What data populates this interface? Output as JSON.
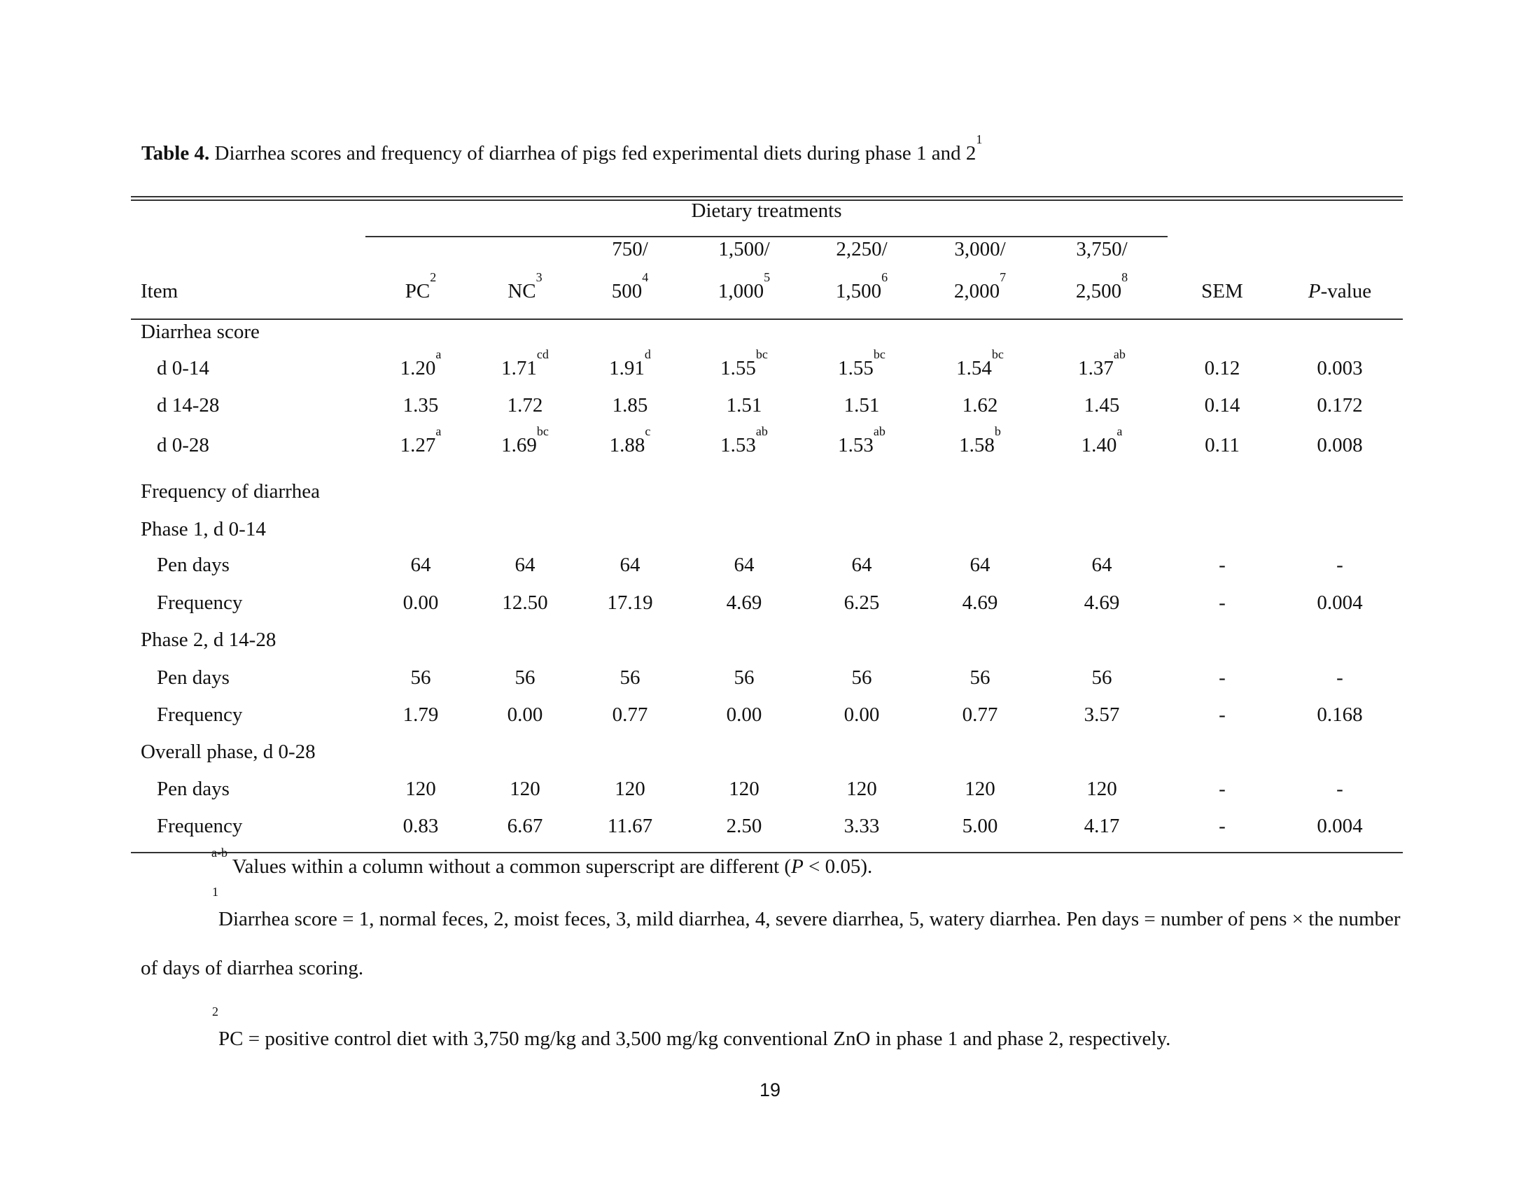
{
  "title": {
    "label": "Table 4.",
    "text": " Diarrhea scores and frequency of diarrhea of pigs fed experimental diets during phase 1 and 2",
    "sup": "1"
  },
  "header": {
    "group": "Dietary treatments",
    "item": "Item",
    "columns": [
      {
        "l1": "",
        "l2": "PC",
        "sup": "2"
      },
      {
        "l1": "",
        "l2": "NC",
        "sup": "3"
      },
      {
        "l1": "750/",
        "l2": "500",
        "sup": "4"
      },
      {
        "l1": "1,500/",
        "l2": "1,000",
        "sup": "5"
      },
      {
        "l1": "2,250/",
        "l2": "1,500",
        "sup": "6"
      },
      {
        "l1": "3,000/",
        "l2": "2,000",
        "sup": "7"
      },
      {
        "l1": "3,750/",
        "l2": "2,500",
        "sup": "8"
      },
      {
        "l1": "",
        "l2": "SEM",
        "sup": ""
      },
      {
        "l1": "",
        "l2": "P",
        "sup": "",
        "suffix": "-value"
      }
    ]
  },
  "rows": [
    {
      "label": "Diarrhea score",
      "indent": false,
      "cells": []
    },
    {
      "label": "d 0-14",
      "indent": true,
      "cells": [
        [
          "1.20",
          "a"
        ],
        [
          "1.71",
          "cd"
        ],
        [
          "1.91",
          "d"
        ],
        [
          "1.55",
          "bc"
        ],
        [
          "1.55",
          "bc"
        ],
        [
          "1.54",
          "bc"
        ],
        [
          "1.37",
          "ab"
        ],
        [
          "0.12",
          ""
        ],
        [
          "0.003",
          ""
        ]
      ]
    },
    {
      "label": "d 14-28",
      "indent": true,
      "cells": [
        [
          "1.35",
          ""
        ],
        [
          "1.72",
          ""
        ],
        [
          "1.85",
          ""
        ],
        [
          "1.51",
          ""
        ],
        [
          "1.51",
          ""
        ],
        [
          "1.62",
          ""
        ],
        [
          "1.45",
          ""
        ],
        [
          "0.14",
          ""
        ],
        [
          "0.172",
          ""
        ]
      ]
    },
    {
      "label": "d 0-28",
      "indent": true,
      "cells": [
        [
          "1.27",
          "a"
        ],
        [
          "1.69",
          "bc"
        ],
        [
          "1.88",
          "c"
        ],
        [
          "1.53",
          "ab"
        ],
        [
          "1.53",
          "ab"
        ],
        [
          "1.58",
          "b"
        ],
        [
          "1.40",
          "a"
        ],
        [
          "0.11",
          ""
        ],
        [
          "0.008",
          ""
        ]
      ]
    },
    {
      "label": "Frequency of diarrhea",
      "indent": false,
      "cells": []
    },
    {
      "label": "Phase 1, d 0-14",
      "indent": false,
      "cells": []
    },
    {
      "label": "Pen days",
      "indent": true,
      "cells": [
        [
          "64",
          ""
        ],
        [
          "64",
          ""
        ],
        [
          "64",
          ""
        ],
        [
          "64",
          ""
        ],
        [
          "64",
          ""
        ],
        [
          "64",
          ""
        ],
        [
          "64",
          ""
        ],
        [
          "-",
          ""
        ],
        [
          "-",
          ""
        ]
      ]
    },
    {
      "label": "Frequency",
      "indent": true,
      "cells": [
        [
          "0.00",
          ""
        ],
        [
          "12.50",
          ""
        ],
        [
          "17.19",
          ""
        ],
        [
          "4.69",
          ""
        ],
        [
          "6.25",
          ""
        ],
        [
          "4.69",
          ""
        ],
        [
          "4.69",
          ""
        ],
        [
          "-",
          ""
        ],
        [
          "0.004",
          ""
        ]
      ]
    },
    {
      "label": "Phase 2, d 14-28",
      "indent": false,
      "cells": []
    },
    {
      "label": "Pen days",
      "indent": true,
      "cells": [
        [
          "56",
          ""
        ],
        [
          "56",
          ""
        ],
        [
          "56",
          ""
        ],
        [
          "56",
          ""
        ],
        [
          "56",
          ""
        ],
        [
          "56",
          ""
        ],
        [
          "56",
          ""
        ],
        [
          "-",
          ""
        ],
        [
          "-",
          ""
        ]
      ]
    },
    {
      "label": "Frequency",
      "indent": true,
      "cells": [
        [
          "1.79",
          ""
        ],
        [
          "0.00",
          ""
        ],
        [
          "0.77",
          ""
        ],
        [
          "0.00",
          ""
        ],
        [
          "0.00",
          ""
        ],
        [
          "0.77",
          ""
        ],
        [
          "3.57",
          ""
        ],
        [
          "-",
          ""
        ],
        [
          "0.168",
          ""
        ]
      ]
    },
    {
      "label": "Overall phase, d 0-28",
      "indent": false,
      "cells": []
    },
    {
      "label": "Pen days",
      "indent": true,
      "cells": [
        [
          "120",
          ""
        ],
        [
          "120",
          ""
        ],
        [
          "120",
          ""
        ],
        [
          "120",
          ""
        ],
        [
          "120",
          ""
        ],
        [
          "120",
          ""
        ],
        [
          "120",
          ""
        ],
        [
          "-",
          ""
        ],
        [
          "-",
          ""
        ]
      ]
    },
    {
      "label": "Frequency",
      "indent": true,
      "cells": [
        [
          "0.83",
          ""
        ],
        [
          "6.67",
          ""
        ],
        [
          "11.67",
          ""
        ],
        [
          "2.50",
          ""
        ],
        [
          "3.33",
          ""
        ],
        [
          "5.00",
          ""
        ],
        [
          "4.17",
          ""
        ],
        [
          "-",
          ""
        ],
        [
          "0.004",
          ""
        ]
      ]
    }
  ],
  "footnotes": {
    "ab_sup": "a-b",
    "ab_text": " Values within a column without a common superscript are different (",
    "ab_p": "P",
    "ab_end": " < 0.05).",
    "fn1_sup": "1",
    "fn1_text": "Diarrhea score = 1, normal feces, 2, moist feces, 3, mild diarrhea, 4, severe diarrhea, 5, watery diarrhea. Pen days = number of pens × the number of days of diarrhea scoring.",
    "fn2_sup": "2",
    "fn2_text": "PC = positive control diet with 3,750 mg/kg and 3,500 mg/kg conventional ZnO in phase 1 and phase 2, respectively."
  },
  "page_number": "19"
}
